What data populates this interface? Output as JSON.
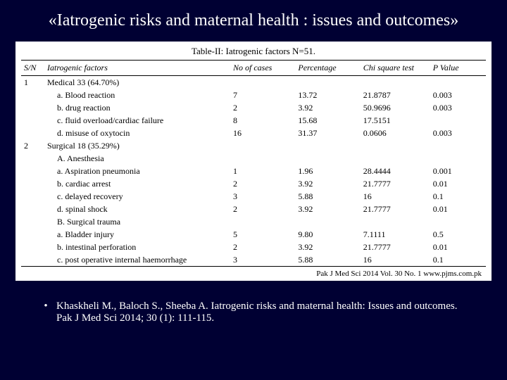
{
  "title": "«Iatrogenic risks and maternal health : issues and outcomes»",
  "table": {
    "caption": "Table-II: Iatrogenic factors N=51.",
    "columns": [
      "S/N",
      "Iatrogenic factors",
      "No of cases",
      "Percentage",
      "Chi square test",
      "P Value"
    ],
    "rows": [
      {
        "sn": "1",
        "factor": "Medical 33 (64.70%)",
        "num": "",
        "pct": "",
        "chi": "",
        "p": "",
        "indent": 0
      },
      {
        "sn": "",
        "factor": "a. Blood reaction",
        "num": "7",
        "pct": "13.72",
        "chi": "21.8787",
        "p": "0.003",
        "indent": 1
      },
      {
        "sn": "",
        "factor": "b. drug reaction",
        "num": "2",
        "pct": "3.92",
        "chi": "50.9696",
        "p": "0.003",
        "indent": 1
      },
      {
        "sn": "",
        "factor": "c. fluid overload/cardiac failure",
        "num": "8",
        "pct": "15.68",
        "chi": "17.5151",
        "p": "",
        "indent": 1
      },
      {
        "sn": "",
        "factor": "d. misuse of oxytocin",
        "num": "16",
        "pct": "31.37",
        "chi": "0.0606",
        "p": "0.003",
        "indent": 1
      },
      {
        "sn": "2",
        "factor": "Surgical 18 (35.29%)",
        "num": "",
        "pct": "",
        "chi": "",
        "p": "",
        "indent": 0
      },
      {
        "sn": "",
        "factor": "A. Anesthesia",
        "num": "",
        "pct": "",
        "chi": "",
        "p": "",
        "indent": 1
      },
      {
        "sn": "",
        "factor": "a. Aspiration pneumonia",
        "num": "1",
        "pct": "1.96",
        "chi": "28.4444",
        "p": "0.001",
        "indent": 1
      },
      {
        "sn": "",
        "factor": "b. cardiac arrest",
        "num": "2",
        "pct": "3.92",
        "chi": "21.7777",
        "p": "0.01",
        "indent": 1
      },
      {
        "sn": "",
        "factor": "c. delayed recovery",
        "num": "3",
        "pct": "5.88",
        "chi": "16",
        "p": "0.1",
        "indent": 1
      },
      {
        "sn": "",
        "factor": "d. spinal shock",
        "num": "2",
        "pct": "3.92",
        "chi": "21.7777",
        "p": "0.01",
        "indent": 1
      },
      {
        "sn": "",
        "factor": "B. Surgical trauma",
        "num": "",
        "pct": "",
        "chi": "",
        "p": "",
        "indent": 1
      },
      {
        "sn": "",
        "factor": "a. Bladder injury",
        "num": "5",
        "pct": "9.80",
        "chi": "7.1111",
        "p": "0.5",
        "indent": 1
      },
      {
        "sn": "",
        "factor": "b. intestinal perforation",
        "num": "2",
        "pct": "3.92",
        "chi": "21.7777",
        "p": "0.01",
        "indent": 1
      },
      {
        "sn": "",
        "factor": "c. post operative internal haemorrhage",
        "num": "3",
        "pct": "5.88",
        "chi": "16",
        "p": "0.1",
        "indent": 1
      }
    ],
    "footer": "Pak J Med Sci    2014    Vol. 30    No. 1      www.pjms.com.pk"
  },
  "citation": "Khaskheli M., Baloch S., Sheeba A. Iatrogenic risks and maternal health: Issues and outcomes. Pak J Med Sci 2014; 30 (1): 111-115.",
  "colors": {
    "slide_bg": "#000033",
    "table_bg": "#ffffff",
    "text_light": "#ffffff",
    "text_dark": "#000000"
  }
}
